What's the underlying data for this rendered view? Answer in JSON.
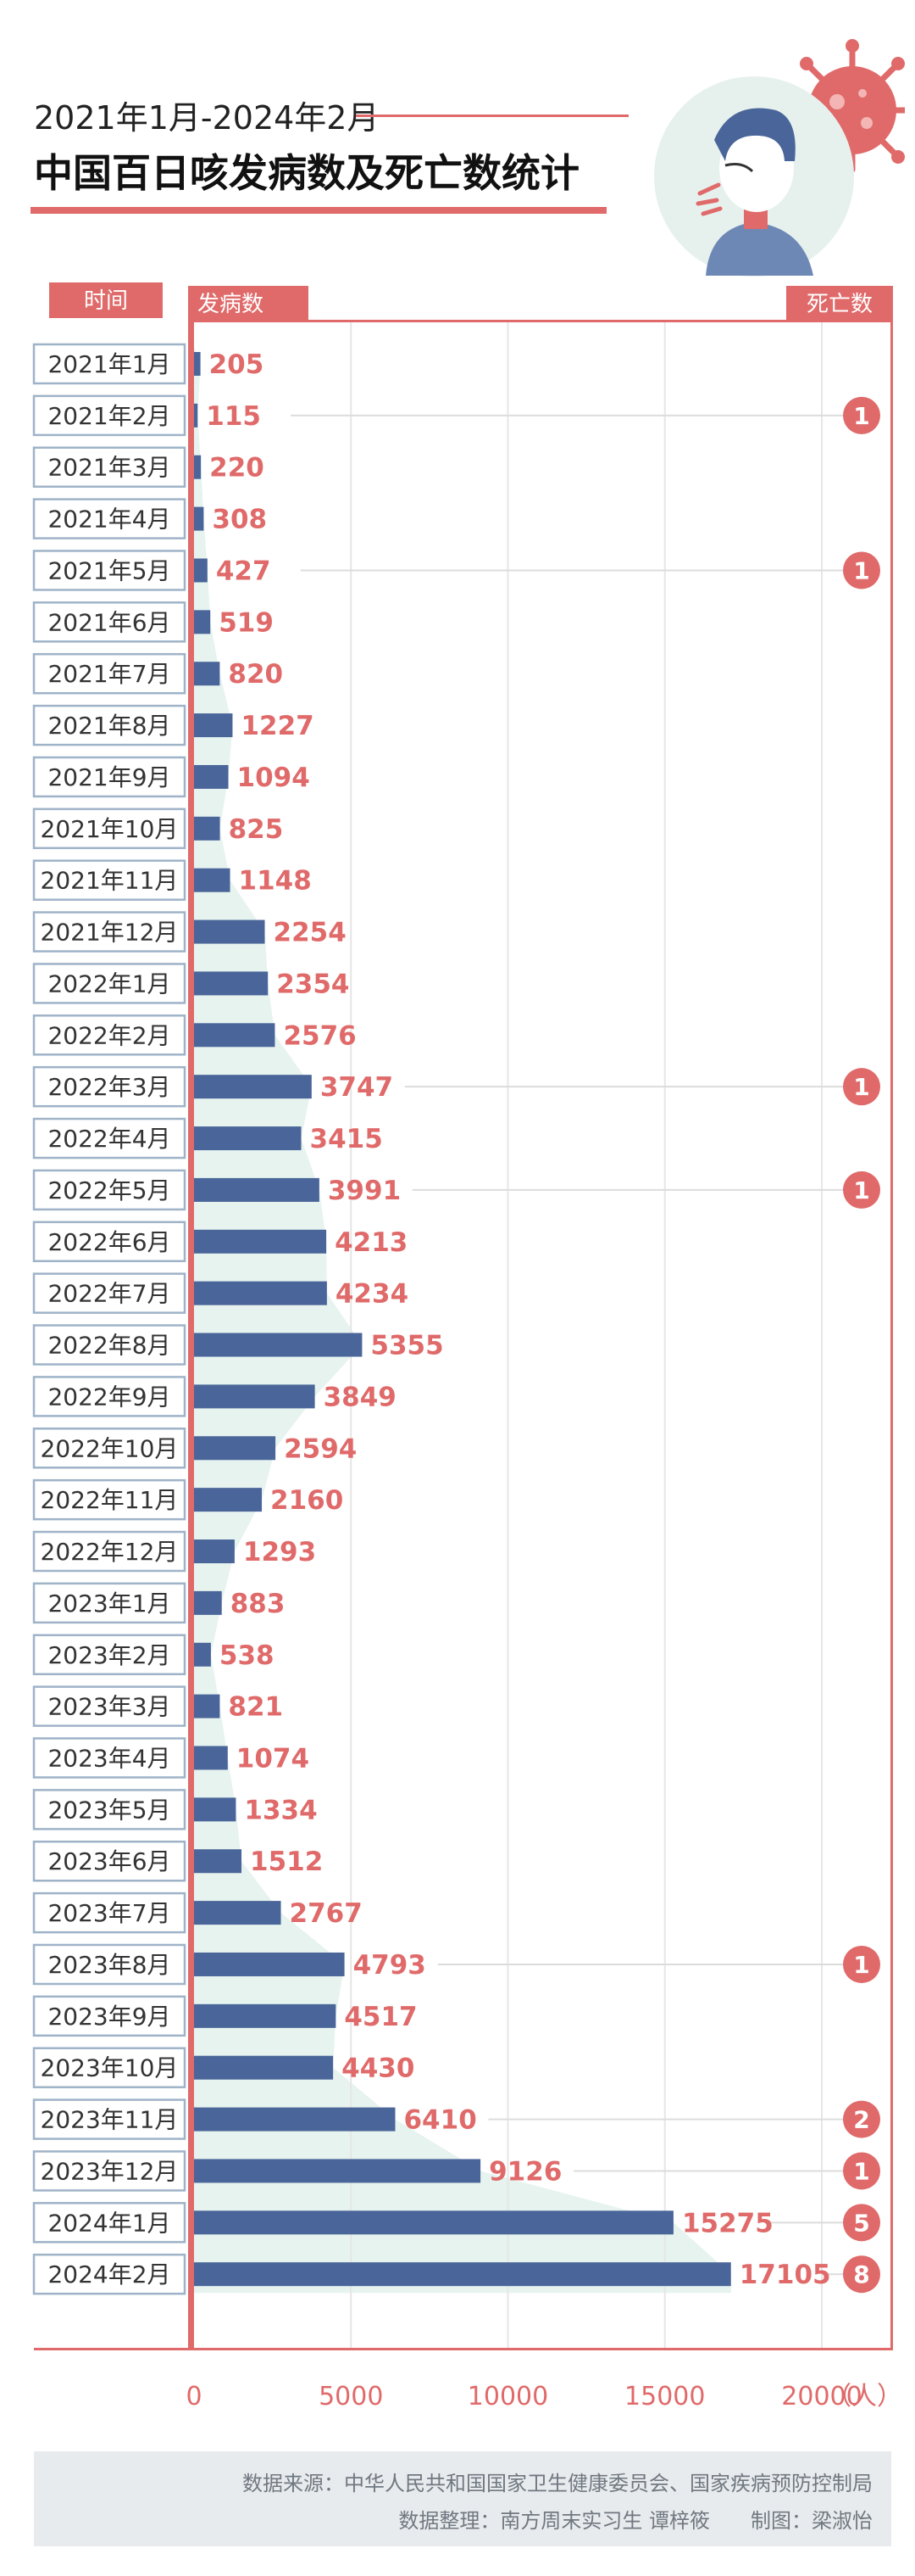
{
  "header": {
    "subtitle": "2021年1月-2024年2月",
    "title": "中国百日咳发病数及死亡数统计"
  },
  "colors": {
    "accent": "#e06a6a",
    "bar": "#4a6599",
    "area": "#e6f3ef",
    "label_box_border": "#9fb3c8"
  },
  "chart_data": {
    "type": "bar",
    "orientation": "horizontal",
    "time_label": "时间",
    "cases_label": "发病数",
    "deaths_label": "死亡数",
    "unit": "（人）",
    "categories": [
      "2021年1月",
      "2021年2月",
      "2021年3月",
      "2021年4月",
      "2021年5月",
      "2021年6月",
      "2021年7月",
      "2021年8月",
      "2021年9月",
      "2021年10月",
      "2021年11月",
      "2021年12月",
      "2022年1月",
      "2022年2月",
      "2022年3月",
      "2022年4月",
      "2022年5月",
      "2022年6月",
      "2022年7月",
      "2022年8月",
      "2022年9月",
      "2022年10月",
      "2022年11月",
      "2022年12月",
      "2023年1月",
      "2023年2月",
      "2023年3月",
      "2023年4月",
      "2023年5月",
      "2023年6月",
      "2023年7月",
      "2023年8月",
      "2023年9月",
      "2023年10月",
      "2023年11月",
      "2023年12月",
      "2024年1月",
      "2024年2月"
    ],
    "cases": [
      205,
      115,
      220,
      308,
      427,
      519,
      820,
      1227,
      1094,
      825,
      1148,
      2254,
      2354,
      2576,
      3747,
      3415,
      3991,
      4213,
      4234,
      5355,
      3849,
      2594,
      2160,
      1293,
      883,
      538,
      821,
      1074,
      1334,
      1512,
      2767,
      4793,
      4517,
      4430,
      6410,
      9126,
      15275,
      17105
    ],
    "deaths": [
      null,
      1,
      null,
      null,
      1,
      null,
      null,
      null,
      null,
      null,
      null,
      null,
      null,
      null,
      1,
      null,
      1,
      null,
      null,
      null,
      null,
      null,
      null,
      null,
      null,
      null,
      null,
      null,
      null,
      null,
      null,
      1,
      null,
      null,
      2,
      1,
      5,
      8
    ],
    "x_ticks": [
      0,
      5000,
      10000,
      15000,
      20000
    ],
    "xlim": [
      0,
      20000
    ],
    "grid": true
  },
  "source": {
    "line1": "数据来源：中华人民共和国国家卫生健康委员会、国家疾病预防控制局",
    "line2": "数据整理：南方周末实习生 谭梓筱　　制图：梁淑怡"
  }
}
